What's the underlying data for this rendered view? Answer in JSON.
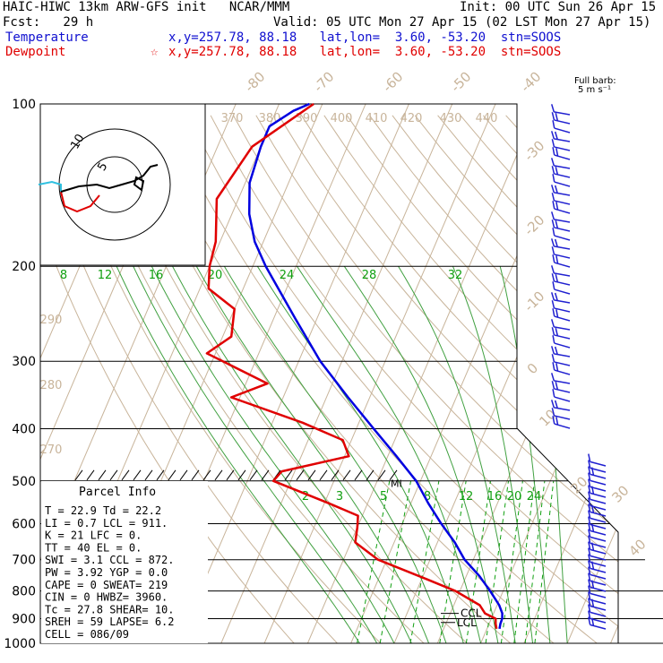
{
  "header": {
    "title": "HAIC-HIWC 13km ARW-GFS init   NCAR/MMM",
    "init": "Init: 00 UTC Sun 26 Apr 15",
    "fcst": "Fcst:   29 h",
    "valid": "Valid: 05 UTC Mon 27 Apr 15 (02 LST Mon 27 Apr 15)",
    "temp_label": "Temperature",
    "temp_info": "x,y=257.78, 88.18   lat,lon=  3.60, -53.20  stn=SOOS",
    "dew_label": "Dewpoint",
    "dew_star": "☆",
    "dew_info": "x,y=257.78, 88.18   lat,lon=  3.60, -53.20  stn=SOOS",
    "barb_title_1": "Full barb:",
    "barb_title_2": "5 m s⁻¹"
  },
  "colors": {
    "temperature": "#0000e0",
    "dewpoint": "#e00000",
    "isotherm": "#c8b49a",
    "mixing_ratio": "#10a010",
    "parcel": "#40a040",
    "hodo_cyan": "#30c0e0",
    "barb": "#2020d0"
  },
  "chart_data": {
    "type": "line",
    "subtype": "skew-T log-p sounding",
    "y_axis": {
      "quantity": "pressure (hPa)",
      "scale": "log",
      "range": [
        1000,
        100
      ],
      "ticks": [
        100,
        200,
        300,
        400,
        500,
        600,
        700,
        800,
        900,
        1000
      ],
      "tick_labels": [
        "100",
        "200",
        "300",
        "400",
        "500",
        "600",
        "700",
        "800",
        "900",
        "1000"
      ]
    },
    "isotherms": {
      "values": [
        -80,
        -70,
        -60,
        -50,
        -40,
        -30,
        -20,
        -10,
        0,
        10,
        20,
        30,
        40
      ],
      "labels": [
        "-80",
        "-70",
        "-60",
        "-50",
        "-40",
        "-30",
        "-20",
        "-10",
        "0",
        "10",
        "20",
        "30",
        "40"
      ]
    },
    "theta_labels": {
      "top_values": [
        370,
        380,
        390,
        400,
        410,
        420,
        430,
        440
      ],
      "top_labels": [
        "370",
        "380",
        "390",
        "400",
        "410",
        "420",
        "430",
        "440"
      ],
      "left_values": [
        290,
        280,
        270
      ],
      "left_labels": [
        "290",
        "280",
        "270"
      ]
    },
    "mixing_ratio_200hPa": {
      "values": [
        8,
        12,
        16,
        20,
        24,
        28,
        32
      ],
      "labels": [
        "8",
        "12",
        "16",
        "20",
        "24",
        "28",
        "32"
      ]
    },
    "mixing_ratio_500hPa": {
      "values": [
        2,
        3,
        5,
        8,
        12,
        16,
        20,
        24
      ],
      "labels": [
        "2",
        "3",
        "5",
        "8",
        "12",
        "16",
        "20",
        "24"
      ]
    },
    "series": [
      {
        "name": "Temperature",
        "points": [
          [
            100,
            -73
          ],
          [
            103,
            -76
          ],
          [
            110,
            -80
          ],
          [
            120,
            -80
          ],
          [
            140,
            -79
          ],
          [
            160,
            -76
          ],
          [
            180,
            -72
          ],
          [
            200,
            -67
          ],
          [
            250,
            -55
          ],
          [
            300,
            -45
          ],
          [
            350,
            -35
          ],
          [
            400,
            -26
          ],
          [
            450,
            -18
          ],
          [
            500,
            -11
          ],
          [
            550,
            -6
          ],
          [
            600,
            -1
          ],
          [
            650,
            4
          ],
          [
            700,
            8
          ],
          [
            750,
            13
          ],
          [
            800,
            17
          ],
          [
            850,
            20.5
          ],
          [
            880,
            22
          ],
          [
            900,
            22.5
          ],
          [
            920,
            22.6
          ],
          [
            940,
            22.9
          ]
        ]
      },
      {
        "name": "Dewpoint",
        "points": [
          [
            100,
            -72
          ],
          [
            120,
            -82
          ],
          [
            150,
            -85
          ],
          [
            180,
            -81
          ],
          [
            200,
            -80
          ],
          [
            220,
            -78
          ],
          [
            240,
            -70
          ],
          [
            270,
            -68
          ],
          [
            290,
            -72
          ],
          [
            330,
            -55
          ],
          [
            350,
            -62
          ],
          [
            390,
            -43
          ],
          [
            420,
            -32
          ],
          [
            450,
            -29
          ],
          [
            480,
            -43
          ],
          [
            500,
            -44
          ],
          [
            550,
            -29
          ],
          [
            580,
            -21
          ],
          [
            610,
            -20
          ],
          [
            650,
            -19
          ],
          [
            700,
            -12
          ],
          [
            760,
            1
          ],
          [
            800,
            9
          ],
          [
            850,
            16
          ],
          [
            880,
            18
          ],
          [
            900,
            21
          ],
          [
            920,
            21.5
          ],
          [
            940,
            22.2
          ]
        ]
      }
    ],
    "markers": [
      {
        "label": "MI",
        "pressure": 505
      },
      {
        "label": "CCL",
        "pressure": 880
      },
      {
        "label": "LCL",
        "pressure": 915
      }
    ],
    "kts_label": "kts"
  },
  "parcel": {
    "title": "Parcel Info",
    "rows": [
      "T   =    22.9  Td =   22.2",
      "LI  =     0.7  LCL =  911.",
      "K   =      21  LFC =    0.",
      "TT  =      40  EL  =    0.",
      "SWI =     3.1  CCL =  872.",
      "PW  =    3.92  YGP =   0.0",
      "CAPE =      0  SWEAT=  219",
      "CIN  =      0  HWBZ= 3960.",
      "Tc  =    27.8  SHEAR=  10.",
      "SREH =     59  LAPSE=  6.2",
      "CELL = 086/09"
    ]
  },
  "hodograph": {
    "ring_labels": [
      "10",
      "5"
    ]
  }
}
